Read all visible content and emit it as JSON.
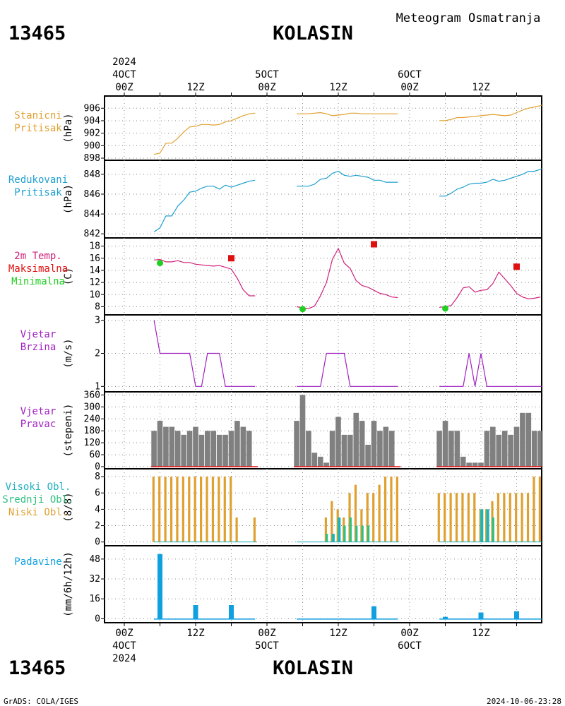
{
  "header": {
    "station_id": "13465",
    "station_name": "KOLASIN",
    "subtitle": "Meteogram Osmatranja",
    "footer_left": "GrADS: COLA/IGES",
    "footer_right": "2024-10-06-23:28"
  },
  "time_axis": {
    "top_year": "2024",
    "top_day_labels": [
      "4OCT",
      "5OCT",
      "6OCT"
    ],
    "hour_labels": [
      "00Z",
      "12Z",
      "00Z",
      "12Z",
      "00Z",
      "12Z"
    ],
    "bottom_day_labels": [
      "4OCT",
      "5OCT",
      "6OCT"
    ],
    "bottom_year": "2024"
  },
  "colors": {
    "pressure": "#e0a030",
    "reduced": "#1fa0d0",
    "temp": "#d0207a",
    "tmax": "#e01010",
    "tmin": "#20d020",
    "wind": "#a020c0",
    "dir_bar": "#808080",
    "cloud_high": "#20b0c0",
    "cloud_mid": "#30c080",
    "cloud_low": "#e0a030",
    "precip": "#10a0e0"
  },
  "chart_data": [
    {
      "type": "line",
      "label_lines": [
        "Stanicni",
        "Pritisak"
      ],
      "ylabel": "(hPa)",
      "ylim": [
        898,
        907.5
      ],
      "yticks": [
        898,
        900,
        902,
        904,
        906
      ],
      "series": [
        {
          "x": [
            5,
            6,
            7,
            8,
            9,
            10,
            11,
            12,
            13,
            14,
            15,
            16,
            17,
            18,
            19,
            20,
            21,
            22,
            23
          ],
          "y": [
            898.6,
            898.8,
            900.4,
            900.4,
            901.2,
            902.2,
            903.0,
            903.1,
            903.4,
            903.4,
            903.3,
            903.4,
            903.8,
            904.0,
            904.4,
            904.8,
            905.1,
            905.2,
            null
          ]
        },
        {
          "x": [
            29,
            30,
            31,
            32,
            33,
            34,
            35,
            36,
            37,
            38,
            39,
            40,
            41,
            42,
            43,
            44,
            45,
            46,
            47
          ],
          "y": [
            905.1,
            905.1,
            905.1,
            905.2,
            905.3,
            905.1,
            904.8,
            904.9,
            905.0,
            905.2,
            905.2,
            905.1,
            905.1,
            905.1,
            905.1,
            905.1,
            905.1,
            905.1,
            null
          ]
        },
        {
          "x": [
            53,
            54,
            55,
            56,
            57,
            58,
            59,
            60,
            61,
            62,
            63,
            64,
            65,
            66,
            67,
            68,
            69,
            70,
            71
          ],
          "y": [
            904.0,
            904.0,
            904.2,
            904.5,
            904.5,
            904.6,
            904.7,
            904.8,
            904.9,
            905.0,
            904.9,
            904.8,
            904.9,
            905.3,
            905.7,
            906.0,
            906.2,
            906.4,
            906.8
          ]
        }
      ]
    },
    {
      "type": "line",
      "label_lines": [
        "Redukovani",
        "Pritisak"
      ],
      "ylabel": "(hPa)",
      "ylim": [
        841.8,
        849.2
      ],
      "yticks": [
        842,
        844,
        846,
        848
      ],
      "series": [
        {
          "x": [
            5,
            6,
            7,
            8,
            9,
            10,
            11,
            12,
            13,
            14,
            15,
            16,
            17,
            18,
            19,
            20,
            21,
            22
          ],
          "y": [
            842.2,
            842.6,
            843.8,
            843.8,
            844.8,
            845.4,
            846.2,
            846.3,
            846.6,
            846.8,
            846.8,
            846.5,
            846.9,
            846.7,
            846.9,
            847.1,
            847.3,
            847.4
          ]
        },
        {
          "x": [
            29,
            30,
            31,
            32,
            33,
            34,
            35,
            36,
            37,
            38,
            39,
            40,
            41,
            42,
            43,
            44,
            45,
            46
          ],
          "y": [
            846.8,
            846.8,
            846.8,
            847.0,
            847.5,
            847.6,
            848.1,
            848.3,
            847.9,
            847.8,
            847.9,
            847.8,
            847.7,
            847.4,
            847.4,
            847.2,
            847.2,
            847.2
          ]
        },
        {
          "x": [
            53,
            54,
            55,
            56,
            57,
            58,
            59,
            60,
            61,
            62,
            63,
            64,
            65,
            66,
            67,
            68,
            69,
            70,
            71
          ],
          "y": [
            845.8,
            845.8,
            846.1,
            846.5,
            846.7,
            847.0,
            847.1,
            847.1,
            847.2,
            847.5,
            847.3,
            847.4,
            847.6,
            847.8,
            848.0,
            848.3,
            848.3,
            848.5,
            848.8
          ]
        }
      ]
    },
    {
      "type": "line",
      "label_lines": [
        "2m Temp.",
        "Maksimalna",
        "Minimalna"
      ],
      "label_color_keys": [
        "temp",
        "tmax",
        "tmin"
      ],
      "ylabel": "(C)",
      "ylim": [
        7,
        19
      ],
      "yticks": [
        8,
        10,
        12,
        14,
        16,
        18
      ],
      "series": [
        {
          "x": [
            5,
            6,
            7,
            8,
            9,
            10,
            11,
            12,
            13,
            14,
            15,
            16,
            17,
            18,
            19,
            20,
            21,
            22
          ],
          "y": [
            15.7,
            15.8,
            15.4,
            15.4,
            15.6,
            15.3,
            15.3,
            15.0,
            14.9,
            14.8,
            14.7,
            14.8,
            14.5,
            14.2,
            12.7,
            10.8,
            9.8,
            9.8
          ]
        },
        {
          "x": [
            29,
            30,
            31,
            32,
            33,
            34,
            35,
            36,
            37,
            38,
            39,
            40,
            41,
            42,
            43,
            44,
            45,
            46
          ],
          "y": [
            8.0,
            7.8,
            7.7,
            8.1,
            9.8,
            12.0,
            15.8,
            17.6,
            15.2,
            14.3,
            12.3,
            11.5,
            11.2,
            10.7,
            10.2,
            10.0,
            9.6,
            9.5
          ]
        },
        {
          "x": [
            53,
            54,
            55,
            56,
            57,
            58,
            59,
            60,
            61,
            62,
            63,
            64,
            65,
            66,
            67,
            68,
            69,
            70,
            71
          ],
          "y": [
            7.9,
            8.0,
            8.2,
            9.5,
            11.1,
            11.3,
            10.4,
            10.7,
            10.8,
            11.8,
            13.7,
            12.6,
            11.5,
            10.2,
            9.6,
            9.3,
            9.4,
            9.6,
            null
          ]
        }
      ],
      "tmax": [
        {
          "x": 18,
          "y": 16.0
        },
        {
          "x": 42,
          "y": 18.3
        },
        {
          "x": 66,
          "y": 14.6
        }
      ],
      "tmin": [
        {
          "x": 6,
          "y": 15.2
        },
        {
          "x": 30,
          "y": 7.6
        },
        {
          "x": 54,
          "y": 7.7
        }
      ]
    },
    {
      "type": "line",
      "label_lines": [
        "Vjetar",
        "Brzina"
      ],
      "ylabel": "(m/s)",
      "ylim": [
        0.9,
        3.1
      ],
      "yticks": [
        1,
        2,
        3
      ],
      "series": [
        {
          "x": [
            5,
            6,
            7,
            8,
            9,
            10,
            11,
            12,
            13,
            14,
            15,
            16,
            17,
            18,
            19,
            20,
            21,
            22
          ],
          "y": [
            3,
            2,
            2,
            2,
            2,
            2,
            2,
            1,
            1,
            2,
            2,
            2,
            1,
            1,
            1,
            1,
            1,
            1
          ]
        },
        {
          "x": [
            29,
            30,
            31,
            32,
            33,
            34,
            35,
            36,
            37,
            38,
            39,
            40,
            41,
            42,
            43,
            44,
            45,
            46
          ],
          "y": [
            1,
            1,
            1,
            1,
            1,
            2,
            2,
            2,
            2,
            1,
            1,
            1,
            1,
            1,
            1,
            1,
            1,
            1
          ]
        },
        {
          "x": [
            53,
            54,
            55,
            56,
            57,
            58,
            59,
            60,
            61,
            62,
            63,
            64,
            65,
            66,
            67,
            68,
            69,
            70,
            71
          ],
          "y": [
            1,
            1,
            1,
            1,
            1,
            2,
            1,
            2,
            1,
            1,
            1,
            1,
            1,
            1,
            1,
            1,
            1,
            1,
            1
          ]
        }
      ]
    },
    {
      "type": "bar",
      "label_lines": [
        "Vjetar",
        "Pravac"
      ],
      "ylabel": "(stepeni)",
      "ylim": [
        0,
        365
      ],
      "yticks": [
        0,
        60,
        120,
        180,
        240,
        300,
        360
      ],
      "x": [
        5,
        6,
        7,
        8,
        9,
        10,
        11,
        12,
        13,
        14,
        15,
        16,
        17,
        18,
        19,
        20,
        21,
        22,
        29,
        30,
        31,
        32,
        33,
        34,
        35,
        36,
        37,
        38,
        39,
        40,
        41,
        42,
        43,
        44,
        45,
        46,
        53,
        54,
        55,
        56,
        57,
        58,
        59,
        60,
        61,
        62,
        63,
        64,
        65,
        66,
        67,
        68,
        69,
        70,
        71
      ],
      "values": [
        180,
        230,
        200,
        200,
        180,
        160,
        180,
        200,
        160,
        180,
        180,
        160,
        160,
        180,
        230,
        200,
        180,
        0,
        230,
        360,
        180,
        70,
        50,
        20,
        180,
        250,
        160,
        160,
        270,
        230,
        110,
        230,
        180,
        200,
        180,
        0,
        180,
        230,
        180,
        180,
        50,
        20,
        20,
        20,
        180,
        200,
        160,
        180,
        160,
        200,
        270,
        270,
        180,
        180,
        0
      ]
    },
    {
      "type": "bar",
      "label_lines": [
        "Visoki Obl.",
        "Srednji Obl.",
        "Niski Obl."
      ],
      "label_color_keys": [
        "cloud_high",
        "cloud_mid",
        "cloud_low"
      ],
      "ylabel": "(8/8)",
      "ylim": [
        -0.2,
        8.7
      ],
      "yticks": [
        0,
        2,
        4,
        6,
        8
      ],
      "x": [
        5,
        6,
        7,
        8,
        9,
        10,
        11,
        12,
        13,
        14,
        15,
        16,
        17,
        18,
        19,
        20,
        21,
        22,
        29,
        30,
        31,
        32,
        33,
        34,
        35,
        36,
        37,
        38,
        39,
        40,
        41,
        42,
        43,
        44,
        45,
        46,
        53,
        54,
        55,
        56,
        57,
        58,
        59,
        60,
        61,
        62,
        63,
        64,
        65,
        66,
        67,
        68,
        69,
        70,
        71
      ],
      "series": [
        {
          "name": "Niski Obl.",
          "values": [
            8,
            8,
            8,
            8,
            8,
            8,
            8,
            8,
            8,
            8,
            8,
            8,
            8,
            8,
            3,
            0,
            0,
            3,
            0,
            0,
            0,
            0,
            0,
            3,
            5,
            4,
            3,
            6,
            7,
            4,
            6,
            6,
            7,
            8,
            8,
            8,
            6,
            6,
            6,
            6,
            6,
            6,
            6,
            4,
            4,
            5,
            6,
            6,
            6,
            6,
            6,
            6,
            8,
            8,
            8
          ]
        },
        {
          "name": "Srednji Obl.",
          "values": [
            0,
            0,
            0,
            0,
            0,
            0,
            0,
            0,
            0,
            0,
            0,
            0,
            0,
            0,
            0,
            0,
            0,
            0,
            0,
            0,
            0,
            0,
            0,
            1,
            1,
            3,
            2,
            3,
            2,
            2,
            2,
            0,
            0,
            0,
            0,
            0,
            0,
            0,
            0,
            0,
            0,
            0,
            0,
            4,
            4,
            3,
            0,
            0,
            0,
            0,
            0,
            0,
            0,
            0,
            0
          ]
        },
        {
          "name": "Visoki Obl.",
          "values": [
            0,
            0,
            0,
            0,
            0,
            0,
            0,
            0,
            0,
            0,
            0,
            0,
            0,
            0,
            0,
            0,
            0,
            0,
            0,
            0,
            0,
            0,
            0,
            0,
            1,
            3,
            0,
            0,
            0,
            0,
            0,
            0,
            0,
            0,
            0,
            0,
            0,
            0,
            0,
            0,
            0,
            0,
            0,
            4,
            4,
            0,
            0,
            0,
            0,
            0,
            0,
            0,
            0,
            0,
            0
          ]
        }
      ]
    },
    {
      "type": "bar",
      "label_lines": [
        "Padavine"
      ],
      "ylabel": "(mm/6h/12h)",
      "ylim": [
        -1.5,
        57
      ],
      "yticks": [
        0,
        16,
        32,
        48
      ],
      "x": [
        6,
        12,
        18,
        42,
        54,
        60,
        66
      ],
      "values": [
        52,
        11,
        11,
        10,
        1.5,
        5,
        6
      ]
    }
  ]
}
